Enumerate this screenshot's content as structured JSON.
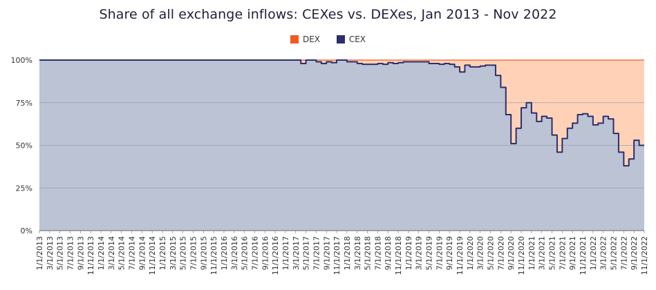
{
  "chart_data": {
    "type": "area",
    "title": "Share of all exchange inflows: CEXes vs. DEXes, Jan 2013 - Nov 2022",
    "xlabel": "",
    "ylabel": "",
    "ylim": [
      0,
      100
    ],
    "y_ticks": [
      "0%",
      "25%",
      "50%",
      "75%",
      "100%"
    ],
    "legend_position": "top-center",
    "colors": {
      "DEX": "#f15a22",
      "CEX": "#2b2f6b",
      "dex_fill": "#ffd2b8",
      "cex_fill": "#bcc3d4",
      "grid": "#9aa0b0"
    },
    "series": [
      {
        "name": "DEX",
        "values": "100 minus CEX share"
      },
      {
        "name": "CEX"
      }
    ],
    "x_tick_labels": [
      "1/1/2013",
      "3/1/2013",
      "5/1/2013",
      "7/1/2013",
      "9/1/2013",
      "11/1/2013",
      "1/1/2014",
      "3/1/2014",
      "5/1/2014",
      "7/1/2014",
      "9/1/2014",
      "11/1/2014",
      "1/1/2015",
      "3/1/2015",
      "5/1/2015",
      "7/1/2015",
      "9/1/2015",
      "11/1/2015",
      "1/1/2016",
      "3/1/2016",
      "5/1/2016",
      "7/1/2016",
      "9/1/2016",
      "11/1/2016",
      "1/1/2017",
      "3/1/2017",
      "5/1/2017",
      "7/1/2017",
      "9/1/2017",
      "11/1/2017",
      "1/1/2018",
      "3/1/2018",
      "5/1/2018",
      "7/1/2018",
      "9/1/2018",
      "11/1/2018",
      "1/1/2019",
      "3/1/2019",
      "5/1/2019",
      "7/1/2019",
      "9/1/2019",
      "11/1/2019",
      "1/1/2020",
      "3/1/2020",
      "5/1/2020",
      "7/1/2020",
      "9/1/2020",
      "11/1/2020",
      "1/1/2021",
      "3/1/2021",
      "5/1/2021",
      "7/1/2021",
      "9/1/2021",
      "11/1/2021",
      "1/1/2022",
      "3/1/2022",
      "5/1/2022",
      "7/1/2022",
      "9/1/2022",
      "11/1/2022"
    ],
    "cex_points": [
      [
        "2013-01-01",
        100
      ],
      [
        "2017-03-01",
        100
      ],
      [
        "2017-04-01",
        98
      ],
      [
        "2017-05-01",
        100
      ],
      [
        "2017-07-01",
        99
      ],
      [
        "2017-08-01",
        98
      ],
      [
        "2017-09-01",
        99
      ],
      [
        "2017-10-01",
        98.5
      ],
      [
        "2017-11-01",
        100
      ],
      [
        "2018-01-01",
        99
      ],
      [
        "2018-03-01",
        98
      ],
      [
        "2018-04-01",
        97.5
      ],
      [
        "2018-07-01",
        98
      ],
      [
        "2018-08-01",
        97.5
      ],
      [
        "2018-09-01",
        98.5
      ],
      [
        "2018-10-01",
        98
      ],
      [
        "2018-11-01",
        98.5
      ],
      [
        "2018-12-01",
        99
      ],
      [
        "2019-05-01",
        98
      ],
      [
        "2019-07-01",
        97.5
      ],
      [
        "2019-08-01",
        98
      ],
      [
        "2019-09-01",
        97.5
      ],
      [
        "2019-10-01",
        96
      ],
      [
        "2019-11-01",
        93
      ],
      [
        "2019-12-01",
        97
      ],
      [
        "2020-01-01",
        96
      ],
      [
        "2020-03-01",
        96.5
      ],
      [
        "2020-04-01",
        97
      ],
      [
        "2020-06-01",
        91
      ],
      [
        "2020-07-01",
        84
      ],
      [
        "2020-08-01",
        68
      ],
      [
        "2020-09-01",
        51
      ],
      [
        "2020-10-01",
        60
      ],
      [
        "2020-11-01",
        72
      ],
      [
        "2020-12-01",
        75
      ],
      [
        "2021-01-01",
        69
      ],
      [
        "2021-02-01",
        64
      ],
      [
        "2021-03-01",
        67
      ],
      [
        "2021-04-01",
        66
      ],
      [
        "2021-05-01",
        56
      ],
      [
        "2021-06-01",
        46
      ],
      [
        "2021-07-01",
        54
      ],
      [
        "2021-08-01",
        60
      ],
      [
        "2021-09-01",
        63
      ],
      [
        "2021-10-01",
        68
      ],
      [
        "2021-11-01",
        68.5
      ],
      [
        "2021-12-01",
        67
      ],
      [
        "2022-01-01",
        62
      ],
      [
        "2022-02-01",
        63
      ],
      [
        "2022-03-01",
        67
      ],
      [
        "2022-04-01",
        65.5
      ],
      [
        "2022-05-01",
        57
      ],
      [
        "2022-06-01",
        46
      ],
      [
        "2022-07-01",
        38
      ],
      [
        "2022-08-01",
        42
      ],
      [
        "2022-09-01",
        53
      ],
      [
        "2022-10-01",
        50
      ],
      [
        "2022-11-01",
        50
      ]
    ]
  }
}
